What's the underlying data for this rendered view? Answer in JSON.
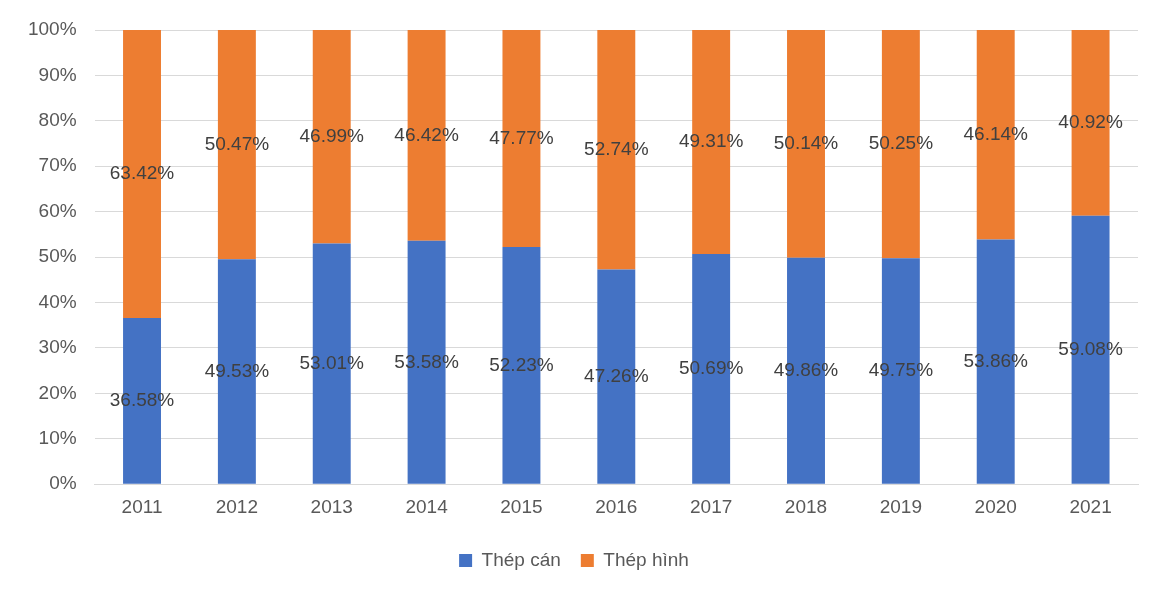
{
  "chart_data": {
    "type": "bar",
    "stacked": true,
    "categories": [
      "2011",
      "2012",
      "2013",
      "2014",
      "2015",
      "2016",
      "2017",
      "2018",
      "2019",
      "2020",
      "2021"
    ],
    "series": [
      {
        "name": "Thép cán",
        "color": "#4472c4",
        "values": [
          36.58,
          49.53,
          53.01,
          53.58,
          52.23,
          47.26,
          50.69,
          49.86,
          49.75,
          53.86,
          59.08
        ],
        "value_labels": [
          "36.58%",
          "49.53%",
          "53.01%",
          "53.58%",
          "52.23%",
          "47.26%",
          "50.69%",
          "49.86%",
          "49.75%",
          "53.86%",
          "59.08%"
        ]
      },
      {
        "name": "Thép hình",
        "color": "#ed7d31",
        "values": [
          63.42,
          50.47,
          46.99,
          46.42,
          47.77,
          52.74,
          49.31,
          50.14,
          50.25,
          46.14,
          40.92
        ],
        "value_labels": [
          "63.42%",
          "50.47%",
          "46.99%",
          "46.42%",
          "47.77%",
          "52.74%",
          "49.31%",
          "50.14%",
          "50.25%",
          "46.14%",
          "40.92%"
        ]
      }
    ],
    "ylim": [
      0,
      100
    ],
    "yticks": [
      {
        "value": 0,
        "label": "0%"
      },
      {
        "value": 10,
        "label": "10%"
      },
      {
        "value": 20,
        "label": "20%"
      },
      {
        "value": 30,
        "label": "30%"
      },
      {
        "value": 40,
        "label": "40%"
      },
      {
        "value": 50,
        "label": "50%"
      },
      {
        "value": 60,
        "label": "60%"
      },
      {
        "value": 70,
        "label": "70%"
      },
      {
        "value": 80,
        "label": "80%"
      },
      {
        "value": 90,
        "label": "90%"
      },
      {
        "value": 100,
        "label": "100%"
      }
    ],
    "grid": "y",
    "legend": "bottom"
  }
}
